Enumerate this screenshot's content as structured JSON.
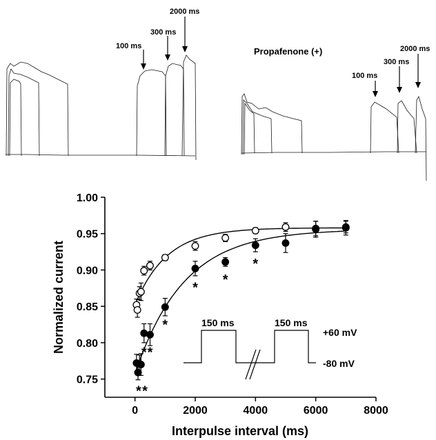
{
  "figure": {
    "traces_left": {
      "arrow_labels": [
        "100 ms",
        "300 ms",
        "2000 ms"
      ]
    },
    "traces_right": {
      "title": "Propafenone (+)",
      "arrow_labels": [
        "100 ms",
        "300 ms",
        "2000 ms"
      ]
    },
    "inset": {
      "pulse_labels": [
        "150 ms",
        "150 ms"
      ],
      "voltage_high": "+60 mV",
      "voltage_low": "-80 mV"
    }
  },
  "chart_data": {
    "type": "scatter",
    "xlabel": "Interpulse interval (ms)",
    "ylabel": "Normalized current",
    "xlim": [
      -1000,
      8000
    ],
    "ylim": [
      0.725,
      1.0
    ],
    "x_ticks": [
      "0",
      "2000",
      "4000",
      "6000",
      "8000"
    ],
    "y_ticks": [
      "0.75",
      "0.80",
      "0.85",
      "0.90",
      "0.95",
      "1.00"
    ],
    "grid": false,
    "series": [
      {
        "marker": "open-circle",
        "color": "#000000",
        "points": [
          {
            "x": 50,
            "y": 0.852,
            "err": 0.008
          },
          {
            "x": 80,
            "y": 0.845,
            "err": 0.01
          },
          {
            "x": 150,
            "y": 0.868,
            "err": 0.009
          },
          {
            "x": 200,
            "y": 0.87,
            "err": 0.012
          },
          {
            "x": 300,
            "y": 0.899,
            "err": 0.006
          },
          {
            "x": 500,
            "y": 0.906,
            "err": 0.006
          },
          {
            "x": 1000,
            "y": 0.917,
            "err": 0.004
          },
          {
            "x": 2000,
            "y": 0.933,
            "err": 0.006
          },
          {
            "x": 3000,
            "y": 0.944,
            "err": 0.005
          },
          {
            "x": 4000,
            "y": 0.954,
            "err": 0.004
          },
          {
            "x": 5000,
            "y": 0.959,
            "err": 0.006
          },
          {
            "x": 6000,
            "y": 0.957,
            "err": 0.01
          },
          {
            "x": 7000,
            "y": 0.959,
            "err": 0.008
          }
        ]
      },
      {
        "marker": "filled-circle",
        "color": "#000000",
        "points": [
          {
            "x": 50,
            "y": 0.772,
            "err": 0.012
          },
          {
            "x": 100,
            "y": 0.759,
            "err": 0.01
          },
          {
            "x": 150,
            "y": 0.771,
            "err": 0.012
          },
          {
            "x": 200,
            "y": 0.77,
            "err": 0.015
          },
          {
            "x": 300,
            "y": 0.813,
            "err": 0.013
          },
          {
            "x": 500,
            "y": 0.811,
            "err": 0.015
          },
          {
            "x": 1000,
            "y": 0.849,
            "err": 0.012
          },
          {
            "x": 2000,
            "y": 0.902,
            "err": 0.01
          },
          {
            "x": 3000,
            "y": 0.911,
            "err": 0.006
          },
          {
            "x": 4000,
            "y": 0.934,
            "err": 0.009
          },
          {
            "x": 5000,
            "y": 0.937,
            "err": 0.013
          },
          {
            "x": 6000,
            "y": 0.956,
            "err": 0.011
          },
          {
            "x": 7000,
            "y": 0.958,
            "err": 0.01
          }
        ]
      }
    ],
    "fits": [
      {
        "marker_series": "open-circle",
        "start": [
          50,
          0.857
        ],
        "end": [
          7000,
          0.958
        ]
      },
      {
        "marker_series": "filled-circle",
        "start": [
          50,
          0.763
        ],
        "end": [
          7000,
          0.956
        ]
      }
    ],
    "annotations": [
      {
        "text": "*",
        "x": 120,
        "y": 0.735
      },
      {
        "text": "*",
        "x": 330,
        "y": 0.735
      },
      {
        "text": "*",
        "x": 300,
        "y": 0.788
      },
      {
        "text": "*",
        "x": 500,
        "y": 0.788
      },
      {
        "text": "*",
        "x": 1000,
        "y": 0.826
      },
      {
        "text": "*",
        "x": 2000,
        "y": 0.877
      },
      {
        "text": "*",
        "x": 3000,
        "y": 0.888
      },
      {
        "text": "*",
        "x": 4000,
        "y": 0.91
      }
    ]
  }
}
